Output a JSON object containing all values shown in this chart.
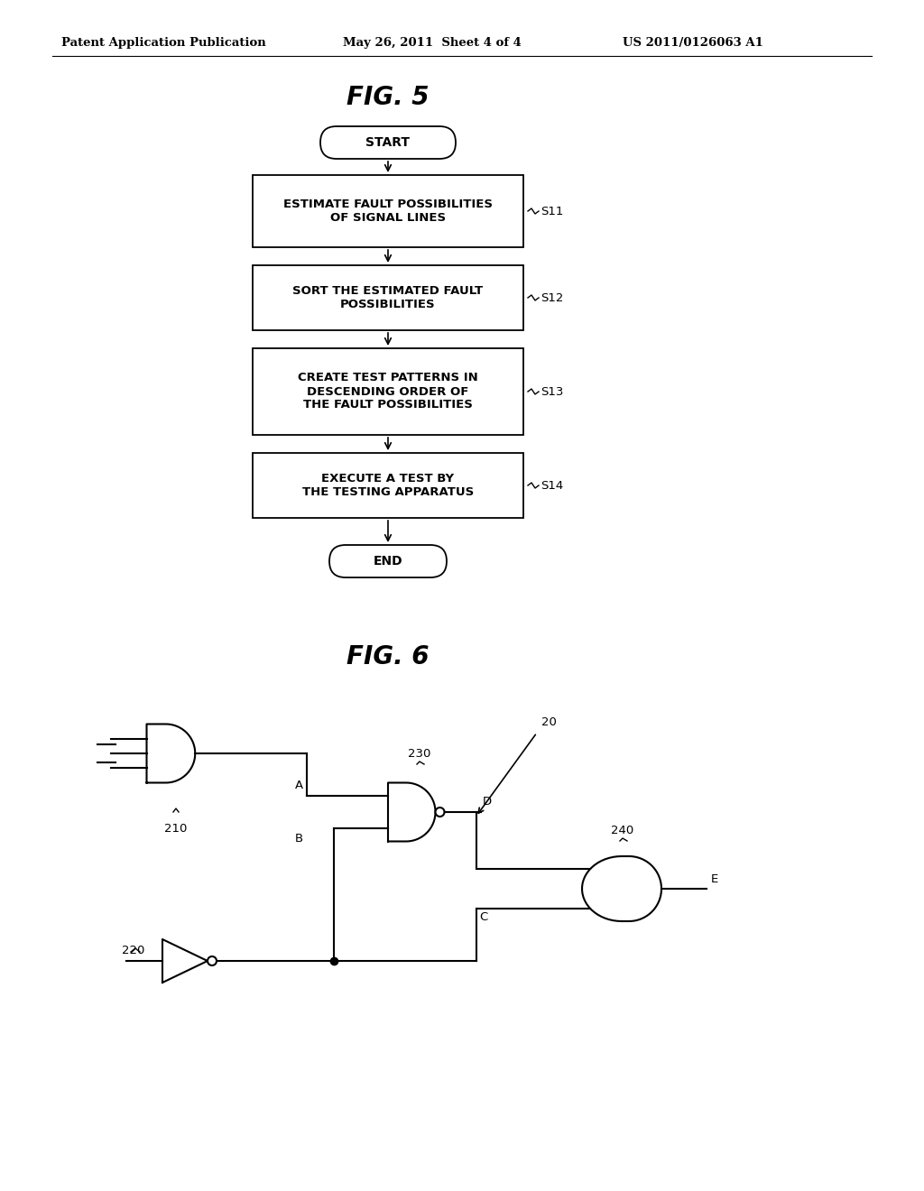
{
  "bg_color": "#ffffff",
  "header_left": "Patent Application Publication",
  "header_mid": "May 26, 2011  Sheet 4 of 4",
  "header_right": "US 2011/0126063 A1",
  "fig5_title": "FIG. 5",
  "fig6_title": "FIG. 6",
  "flowchart": {
    "start_label": "START",
    "end_label": "END",
    "boxes": [
      {
        "label": "ESTIMATE FAULT POSSIBILITIES\nOF SIGNAL LINES",
        "step": "S11"
      },
      {
        "label": "SORT THE ESTIMATED FAULT\nPOSSIBILITIES",
        "step": "S12"
      },
      {
        "label": "CREATE TEST PATTERNS IN\nDESCENDING ORDER OF\nTHE FAULT POSSIBILITIES",
        "step": "S13"
      },
      {
        "label": "EXECUTE A TEST BY\nTHE TESTING APPARATUS",
        "step": "S14"
      }
    ]
  }
}
